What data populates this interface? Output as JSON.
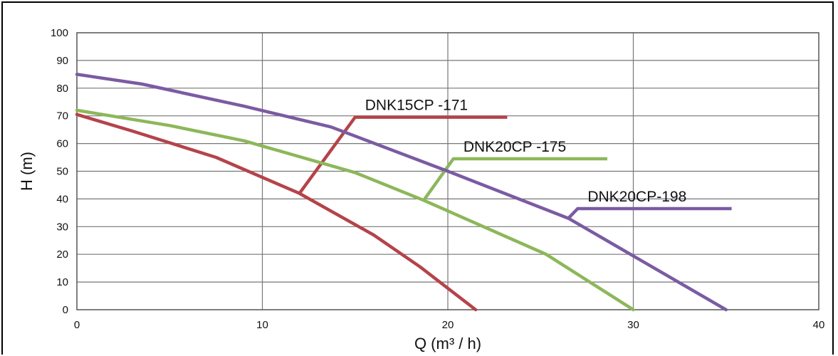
{
  "chart_data": {
    "type": "line",
    "title": "",
    "xlabel": "Q (m³ / h)",
    "ylabel": "H (m)",
    "xlim": [
      0,
      40
    ],
    "ylim": [
      0,
      100
    ],
    "x_ticks": [
      0,
      10,
      20,
      30,
      40
    ],
    "y_ticks": [
      0,
      10,
      20,
      30,
      40,
      50,
      60,
      70,
      80,
      90,
      100
    ],
    "grid": true,
    "legend": "none",
    "series": [
      {
        "name": "DNK15CP -171",
        "color": "#b5434a",
        "points": [
          [
            0,
            70.5
          ],
          [
            3,
            64.5
          ],
          [
            7.5,
            55
          ],
          [
            12,
            42
          ],
          [
            16,
            27
          ],
          [
            18.5,
            15.5
          ],
          [
            21.5,
            0
          ]
        ],
        "leader": [
          [
            12,
            42
          ],
          [
            15,
            69.5
          ],
          [
            23.2,
            69.5
          ]
        ]
      },
      {
        "name": "DNK20CP -175",
        "color": "#8db75a",
        "points": [
          [
            0,
            72
          ],
          [
            5,
            66.5
          ],
          [
            9,
            61
          ],
          [
            15,
            49.5
          ],
          [
            18.7,
            39.5
          ],
          [
            25.3,
            20
          ],
          [
            30,
            0
          ]
        ],
        "leader": [
          [
            18.7,
            39.5
          ],
          [
            20.3,
            54.5
          ],
          [
            28.6,
            54.5
          ]
        ]
      },
      {
        "name": "DNK20CP-198",
        "color": "#7b5ba3",
        "points": [
          [
            0,
            85
          ],
          [
            3.5,
            81.5
          ],
          [
            9,
            73.5
          ],
          [
            13.7,
            66
          ],
          [
            20,
            50
          ],
          [
            26.5,
            33
          ],
          [
            35,
            0
          ]
        ],
        "leader": [
          [
            26.5,
            33
          ],
          [
            27,
            36.5
          ],
          [
            35.3,
            36.5
          ]
        ]
      }
    ]
  }
}
